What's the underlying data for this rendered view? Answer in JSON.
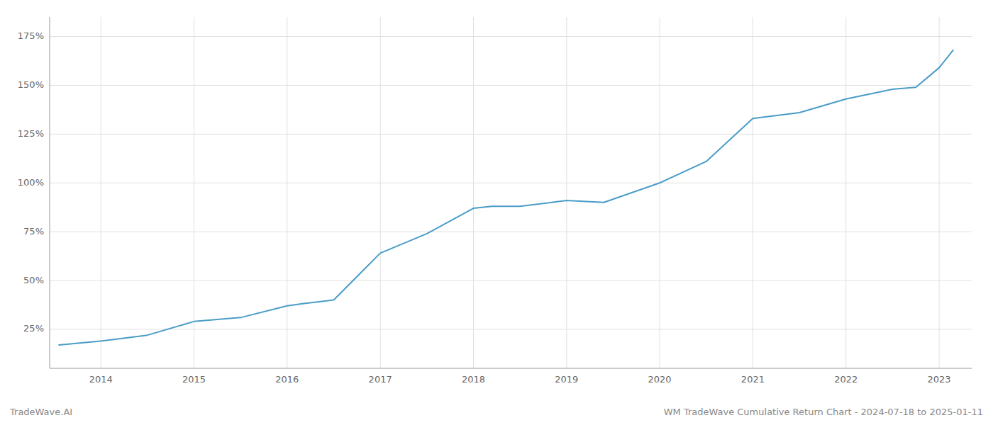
{
  "chart_data": {
    "type": "line",
    "title": "WM TradeWave Cumulative Return Chart - 2024-07-18 to 2025-01-11",
    "annotations": [
      "TradeWave.AI"
    ],
    "x": [
      2013.55,
      2014.0,
      2014.5,
      2015.0,
      2015.5,
      2016.0,
      2016.15,
      2016.5,
      2017.0,
      2017.5,
      2018.0,
      2018.2,
      2018.5,
      2019.0,
      2019.4,
      2020.0,
      2020.5,
      2021.0,
      2021.5,
      2022.0,
      2022.5,
      2022.75,
      2023.0,
      2023.15
    ],
    "values": [
      17,
      19,
      22,
      29,
      31,
      37,
      38,
      40,
      64,
      74,
      87,
      88,
      88,
      91,
      90,
      100,
      111,
      133,
      136,
      143,
      148,
      149,
      159,
      168
    ],
    "color": "#4a9cc7",
    "xlim": [
      2013.45,
      2023.35
    ],
    "xticks": [
      2014,
      2015,
      2016,
      2017,
      2018,
      2019,
      2020,
      2021,
      2022,
      2023
    ],
    "ylim": [
      5,
      185
    ],
    "yticks": [
      {
        "value": 25,
        "label": "25%"
      },
      {
        "value": 50,
        "label": "50%"
      },
      {
        "value": 75,
        "label": "75%"
      },
      {
        "value": 100,
        "label": "100%"
      },
      {
        "value": 125,
        "label": "125%"
      },
      {
        "value": 150,
        "label": "150%"
      },
      {
        "value": 175,
        "label": "175%"
      }
    ],
    "grid": true
  }
}
